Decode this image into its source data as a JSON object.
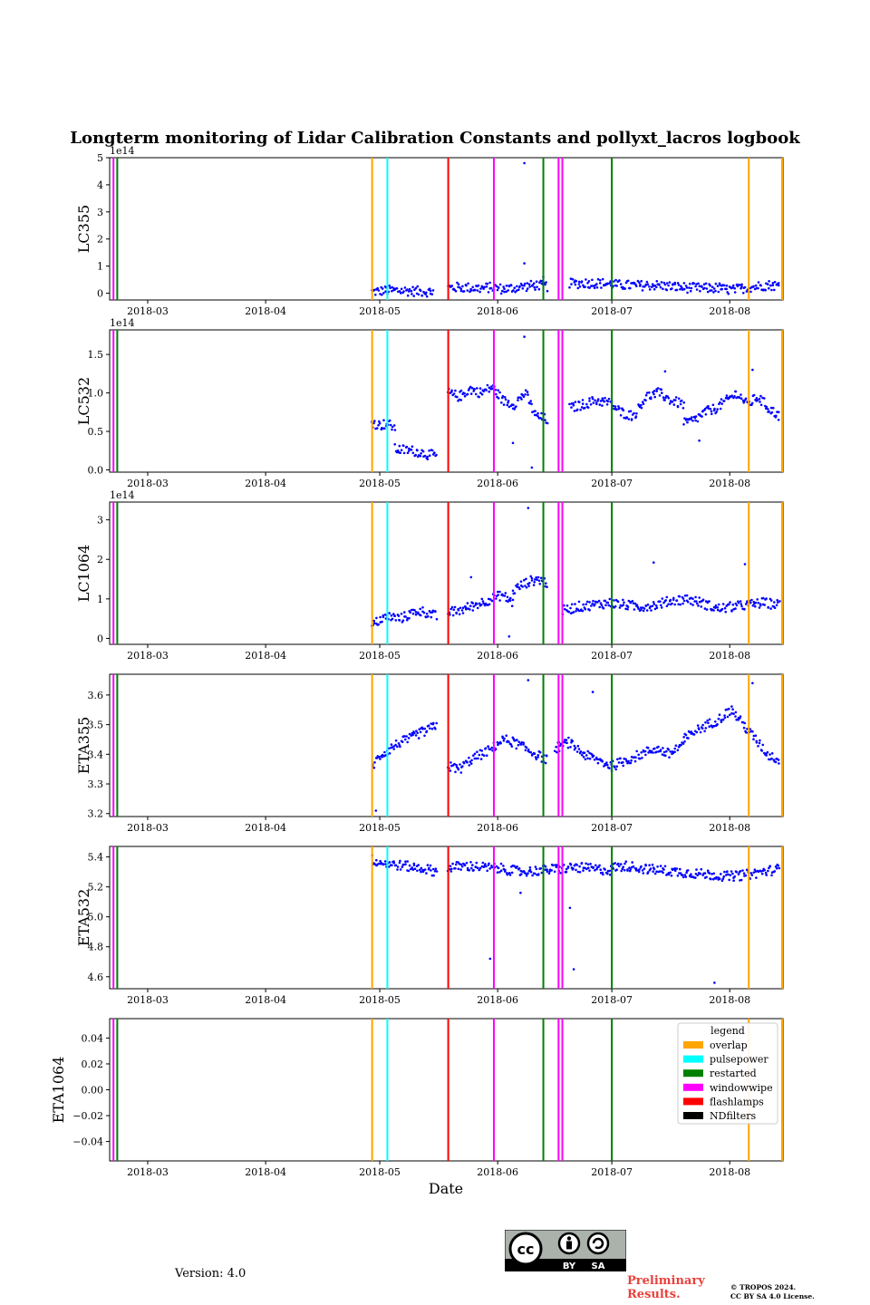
{
  "chart_data": {
    "type": "scatter",
    "title": "Longterm monitoring of Lidar Calibration Constants and pollyxt_lacros logbook",
    "xlabel": "Date",
    "x_tick_labels": [
      "2018-03",
      "2018-04",
      "2018-05",
      "2018-06",
      "2018-07",
      "2018-08"
    ],
    "x_range": [
      "2018-02-19",
      "2018-08-15"
    ],
    "point_color": "#0000ff",
    "panels": [
      {
        "ylabel": "LC355",
        "multiplier": "1e14",
        "ylim": [
          -0.25,
          5.0
        ],
        "yticks": [
          "0",
          "1",
          "2",
          "3",
          "4",
          "5"
        ],
        "ytick_values": [
          0,
          1,
          2,
          3,
          4,
          5
        ],
        "segments": [
          {
            "start": "2018-04-29",
            "end": "2018-05-15",
            "values": [
              0.05,
              0.08,
              0.1,
              0.1,
              0.09,
              0.07,
              0.06,
              0.05
            ]
          },
          {
            "start": "2018-05-19",
            "end": "2018-06-14",
            "values": [
              0.2,
              0.22,
              0.2,
              0.18,
              0.22,
              0.15,
              0.2,
              0.25,
              0.3,
              0.25
            ]
          },
          {
            "start": "2018-06-20",
            "end": "2018-07-30",
            "values": [
              0.35,
              0.38,
              0.36,
              0.3,
              0.28,
              0.3,
              0.25,
              0.2,
              0.18,
              0.2
            ]
          },
          {
            "start": "2018-07-30",
            "end": "2018-08-14",
            "values": [
              0.15,
              0.12,
              0.2,
              0.25,
              0.3,
              0.28
            ]
          }
        ],
        "outliers": [
          {
            "x": "2018-06-08",
            "y": 4.8
          },
          {
            "x": "2018-06-08",
            "y": 1.1
          },
          {
            "x": "2018-06-13",
            "y": 0.6
          }
        ]
      },
      {
        "ylabel": "LC532",
        "multiplier": "1e14",
        "ylim": [
          -0.03,
          1.82
        ],
        "yticks": [
          "0.0",
          "0.5",
          "1.0",
          "1.5"
        ],
        "ytick_values": [
          0,
          0.5,
          1.0,
          1.5
        ],
        "segments": [
          {
            "start": "2018-04-29",
            "end": "2018-05-05",
            "values": [
              0.62,
              0.58,
              0.6,
              0.55
            ]
          },
          {
            "start": "2018-05-05",
            "end": "2018-05-16",
            "values": [
              0.27,
              0.26,
              0.25,
              0.23,
              0.2,
              0.18
            ]
          },
          {
            "start": "2018-05-19",
            "end": "2018-06-14",
            "values": [
              1.0,
              0.95,
              1.05,
              1.0,
              1.08,
              0.9,
              0.85,
              1.0,
              0.7,
              0.65
            ]
          },
          {
            "start": "2018-06-20",
            "end": "2018-07-20",
            "values": [
              0.8,
              0.85,
              0.9,
              0.88,
              0.75,
              0.7,
              0.95,
              1.0,
              0.9,
              0.85
            ]
          },
          {
            "start": "2018-07-20",
            "end": "2018-08-14",
            "values": [
              0.6,
              0.65,
              0.75,
              0.8,
              0.9,
              1.0,
              0.85,
              0.95,
              0.8,
              0.7
            ]
          }
        ],
        "outliers": [
          {
            "x": "2018-06-08",
            "y": 1.73
          },
          {
            "x": "2018-06-10",
            "y": 0.03
          },
          {
            "x": "2018-06-05",
            "y": 0.35
          },
          {
            "x": "2018-07-24",
            "y": 0.38
          },
          {
            "x": "2018-08-07",
            "y": 1.3
          },
          {
            "x": "2018-07-15",
            "y": 1.28
          }
        ]
      },
      {
        "ylabel": "LC1064",
        "multiplier": "1e14",
        "ylim": [
          -0.15,
          3.45
        ],
        "yticks": [
          "0",
          "1",
          "2",
          "3"
        ],
        "ytick_values": [
          0,
          1,
          2,
          3
        ],
        "segments": [
          {
            "start": "2018-04-29",
            "end": "2018-05-16",
            "values": [
              0.3,
              0.5,
              0.55,
              0.5,
              0.6,
              0.7,
              0.65,
              0.55
            ]
          },
          {
            "start": "2018-05-19",
            "end": "2018-06-05",
            "values": [
              0.65,
              0.7,
              0.8,
              0.9,
              1.0,
              1.1,
              0.9
            ]
          },
          {
            "start": "2018-06-05",
            "end": "2018-06-14",
            "values": [
              1.2,
              1.35,
              1.45,
              1.5,
              1.4
            ]
          },
          {
            "start": "2018-06-18",
            "end": "2018-08-14",
            "values": [
              0.7,
              0.8,
              0.85,
              0.9,
              0.85,
              0.8,
              0.85,
              0.95,
              1.0,
              0.9,
              0.75,
              0.8,
              0.85,
              0.9,
              0.85
            ]
          }
        ],
        "outliers": [
          {
            "x": "2018-06-09",
            "y": 3.3
          },
          {
            "x": "2018-07-12",
            "y": 1.92
          },
          {
            "x": "2018-08-05",
            "y": 1.88
          },
          {
            "x": "2018-06-04",
            "y": 0.05
          },
          {
            "x": "2018-05-25",
            "y": 1.55
          }
        ]
      },
      {
        "ylabel": "ETA355",
        "multiplier": "",
        "ylim": [
          3.19,
          3.67
        ],
        "yticks": [
          "3.2",
          "3.3",
          "3.4",
          "3.5",
          "3.6"
        ],
        "ytick_values": [
          3.2,
          3.3,
          3.4,
          3.5,
          3.6
        ],
        "segments": [
          {
            "start": "2018-04-29",
            "end": "2018-05-16",
            "values": [
              3.36,
              3.4,
              3.42,
              3.44,
              3.45,
              3.47,
              3.48,
              3.5
            ]
          },
          {
            "start": "2018-05-19",
            "end": "2018-06-14",
            "values": [
              3.36,
              3.35,
              3.38,
              3.4,
              3.42,
              3.45,
              3.44,
              3.42,
              3.4,
              3.38
            ]
          },
          {
            "start": "2018-06-16",
            "end": "2018-07-20",
            "values": [
              3.42,
              3.44,
              3.4,
              3.38,
              3.36,
              3.38,
              3.4,
              3.42,
              3.4,
              3.44
            ]
          },
          {
            "start": "2018-07-20",
            "end": "2018-08-14",
            "values": [
              3.45,
              3.48,
              3.5,
              3.52,
              3.55,
              3.5,
              3.45,
              3.4,
              3.38
            ]
          }
        ],
        "outliers": [
          {
            "x": "2018-06-09",
            "y": 3.65
          },
          {
            "x": "2018-04-30",
            "y": 3.21
          },
          {
            "x": "2018-08-07",
            "y": 3.64
          },
          {
            "x": "2018-06-26",
            "y": 3.61
          }
        ]
      },
      {
        "ylabel": "ETA532",
        "multiplier": "",
        "ylim": [
          4.52,
          5.47
        ],
        "yticks": [
          "4.6",
          "4.8",
          "5.0",
          "5.2",
          "5.4"
        ],
        "ytick_values": [
          4.6,
          4.8,
          5.0,
          5.2,
          5.4
        ],
        "segments": [
          {
            "start": "2018-04-29",
            "end": "2018-05-16",
            "values": [
              5.38,
              5.36,
              5.35,
              5.34,
              5.33,
              5.32,
              5.3
            ]
          },
          {
            "start": "2018-05-19",
            "end": "2018-07-01",
            "values": [
              5.33,
              5.34,
              5.33,
              5.32,
              5.3,
              5.31,
              5.32,
              5.33,
              5.32,
              5.31
            ]
          },
          {
            "start": "2018-07-01",
            "end": "2018-08-14",
            "values": [
              5.33,
              5.34,
              5.32,
              5.31,
              5.3,
              5.29,
              5.28,
              5.27,
              5.28,
              5.3,
              5.32
            ]
          }
        ],
        "outliers": [
          {
            "x": "2018-05-30",
            "y": 4.72
          },
          {
            "x": "2018-06-21",
            "y": 4.65
          },
          {
            "x": "2018-06-20",
            "y": 5.06
          },
          {
            "x": "2018-07-28",
            "y": 4.56
          },
          {
            "x": "2018-06-07",
            "y": 5.16
          }
        ]
      },
      {
        "ylabel": "ETA1064",
        "multiplier": "",
        "ylim": [
          -0.055,
          0.055
        ],
        "yticks": [
          "−0.04",
          "−0.02",
          "0.00",
          "0.02",
          "0.04"
        ],
        "ytick_values": [
          -0.04,
          -0.02,
          0,
          0.02,
          0.04
        ],
        "segments": [],
        "outliers": []
      }
    ],
    "events": [
      {
        "date": "2018-02-20",
        "type": "windowwipe"
      },
      {
        "date": "2018-02-21",
        "type": "restarted"
      },
      {
        "date": "2018-04-29",
        "type": "overlap"
      },
      {
        "date": "2018-05-03",
        "type": "pulsepower"
      },
      {
        "date": "2018-05-19",
        "type": "flashlamps"
      },
      {
        "date": "2018-05-31",
        "type": "windowwipe"
      },
      {
        "date": "2018-06-13",
        "type": "restarted"
      },
      {
        "date": "2018-06-17",
        "type": "windowwipe"
      },
      {
        "date": "2018-06-18",
        "type": "windowwipe"
      },
      {
        "date": "2018-07-01",
        "type": "restarted"
      },
      {
        "date": "2018-08-06",
        "type": "overlap"
      },
      {
        "date": "2018-08-15",
        "type": "overlap"
      }
    ],
    "legend": {
      "title": "legend",
      "placement": "upper-right of last panel",
      "items": [
        {
          "label": "overlap",
          "color": "#ffa500"
        },
        {
          "label": "pulsepower",
          "color": "#00ffff"
        },
        {
          "label": "restarted",
          "color": "#008000"
        },
        {
          "label": "windowwipe",
          "color": "#ff00ff"
        },
        {
          "label": "flashlamps",
          "color": "#ff0000"
        },
        {
          "label": "NDfilters",
          "color": "#000000"
        }
      ]
    }
  },
  "footer": {
    "version": "Version: 4.0",
    "preliminary": "Preliminary Results.",
    "copyright_line1": "© TROPOS 2024.",
    "copyright_line2": "CC BY SA 4.0 License.",
    "cc_badge_text": [
      "cc",
      "BY",
      "SA"
    ]
  }
}
